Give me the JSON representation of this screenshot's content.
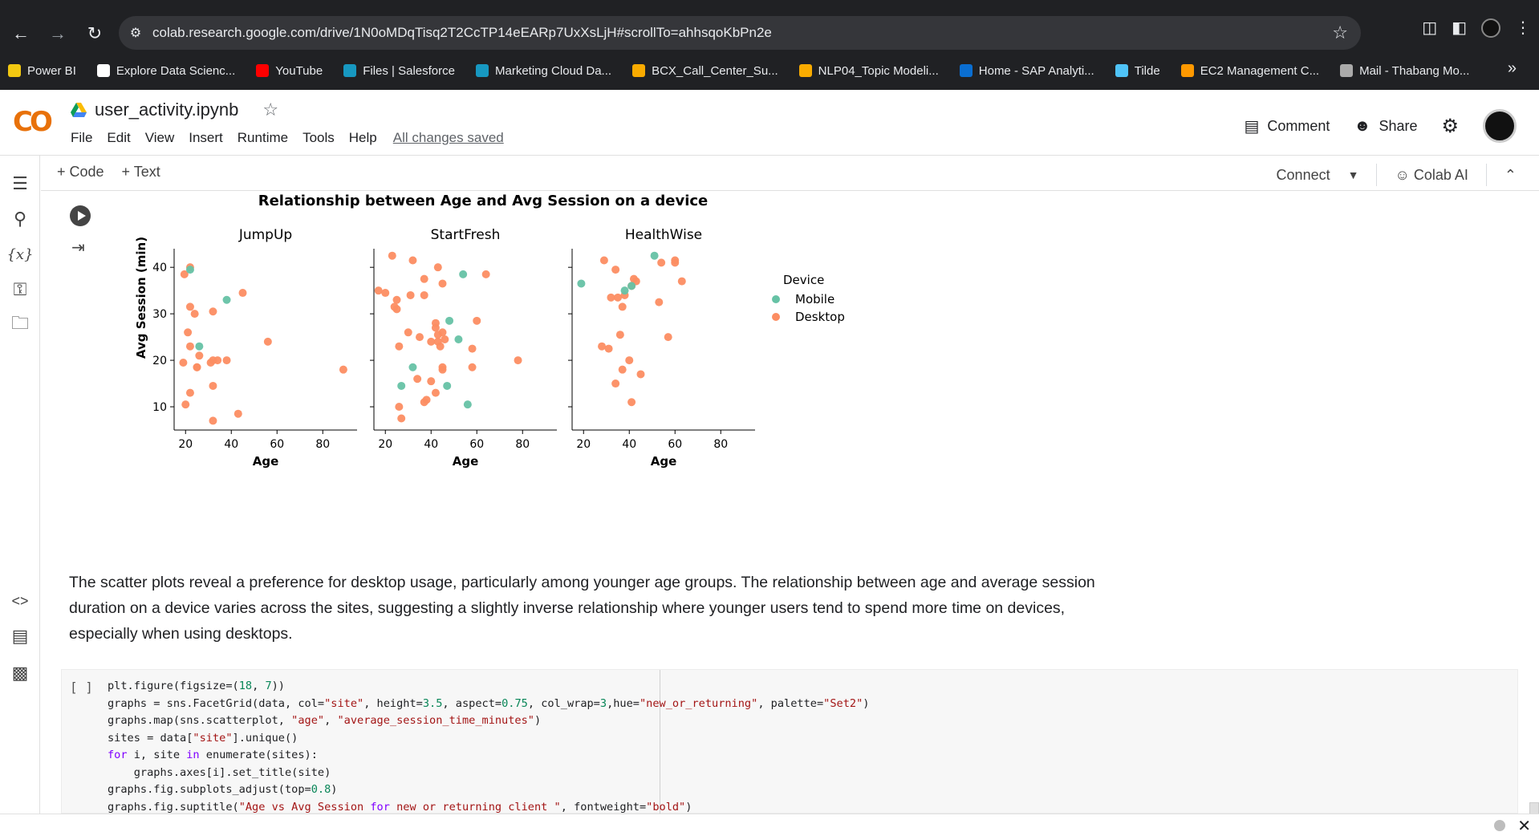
{
  "browser": {
    "url": "colab.research.google.com/drive/1N0oMDqTisq2T2CcTP14eEARp7UxXsLjH#scrollTo=ahhsqoKbPn2e",
    "bookmarks": [
      {
        "label": "Power BI",
        "color": "#f2c811"
      },
      {
        "label": "Explore Data Scienc...",
        "color": "#ffffff"
      },
      {
        "label": "YouTube",
        "color": "#ff0000"
      },
      {
        "label": "Files | Salesforce",
        "color": "#1798c1"
      },
      {
        "label": "Marketing Cloud Da...",
        "color": "#1798c1"
      },
      {
        "label": "BCX_Call_Center_Su...",
        "color": "#f9ab00"
      },
      {
        "label": "NLP04_Topic Modeli...",
        "color": "#f9ab00"
      },
      {
        "label": "Home - SAP Analyti...",
        "color": "#0a6ed1"
      },
      {
        "label": "Tilde",
        "color": "#4fc3f7"
      },
      {
        "label": "EC2 Management C...",
        "color": "#ff9900"
      },
      {
        "label": "Mail - Thabang Mo...",
        "color": "#aaaaaa"
      }
    ]
  },
  "colab": {
    "logo": "CO",
    "notebook_title": "user_activity.ipynb",
    "menu": [
      "File",
      "Edit",
      "View",
      "Insert",
      "Runtime",
      "Tools",
      "Help"
    ],
    "saved_status": "All changes saved",
    "comment_label": "Comment",
    "share_label": "Share",
    "add_code_label": "+ Code",
    "add_text_label": "+ Text",
    "connect_label": "Connect",
    "colab_ai_label": "Colab AI"
  },
  "chart_data": {
    "type": "scatter",
    "title": "Relationship between Age and Avg Session on a device",
    "ylabel": "Avg Session (min)",
    "xlabel": "Age",
    "xlim": [
      15,
      95
    ],
    "ylim": [
      5,
      44
    ],
    "xticks": [
      20,
      40,
      60,
      80
    ],
    "yticks": [
      10,
      20,
      30,
      40
    ],
    "legend_title": "Device",
    "legend_position": "right",
    "series_names": [
      "Mobile",
      "Desktop"
    ],
    "series_colors": {
      "Mobile": "#66c2a5",
      "Desktop": "#fc8d62"
    },
    "panels": [
      {
        "name": "JumpUp",
        "Mobile": [
          [
            22,
            39.5
          ],
          [
            38,
            33
          ],
          [
            26,
            23
          ]
        ],
        "Desktop": [
          [
            19.5,
            38.5
          ],
          [
            22,
            40
          ],
          [
            22,
            31.5
          ],
          [
            24,
            30
          ],
          [
            32,
            30.5
          ],
          [
            45,
            34.5
          ],
          [
            21,
            26
          ],
          [
            22,
            23
          ],
          [
            26,
            21
          ],
          [
            25,
            18.5
          ],
          [
            25,
            18.5
          ],
          [
            31,
            19.5
          ],
          [
            32,
            20
          ],
          [
            34,
            20
          ],
          [
            38,
            20
          ],
          [
            19,
            19.5
          ],
          [
            56,
            24
          ],
          [
            22,
            13
          ],
          [
            32,
            14.5
          ],
          [
            20,
            10.5
          ],
          [
            43,
            8.5
          ],
          [
            32,
            7
          ],
          [
            89,
            18
          ]
        ]
      },
      {
        "name": "StartFresh",
        "Mobile": [
          [
            54,
            38.5
          ],
          [
            48,
            28.5
          ],
          [
            52,
            24.5
          ],
          [
            32,
            18.5
          ],
          [
            27,
            14.5
          ],
          [
            47,
            14.5
          ],
          [
            56,
            10.5
          ]
        ],
        "Desktop": [
          [
            23,
            42.5
          ],
          [
            32,
            41.5
          ],
          [
            43,
            40
          ],
          [
            37,
            37.5
          ],
          [
            45,
            36.5
          ],
          [
            64,
            38.5
          ],
          [
            17,
            35
          ],
          [
            20,
            34.5
          ],
          [
            25,
            33
          ],
          [
            24,
            31.5
          ],
          [
            25,
            31
          ],
          [
            31,
            34
          ],
          [
            37,
            34
          ],
          [
            42,
            28
          ],
          [
            42,
            27
          ],
          [
            45,
            26
          ],
          [
            43,
            25.5
          ],
          [
            46,
            24.5
          ],
          [
            40,
            24
          ],
          [
            35,
            25
          ],
          [
            43,
            24
          ],
          [
            44,
            23
          ],
          [
            30,
            26
          ],
          [
            26,
            23
          ],
          [
            60,
            28.5
          ],
          [
            58,
            22.5
          ],
          [
            45,
            18.5
          ],
          [
            45,
            18
          ],
          [
            58,
            18.5
          ],
          [
            78,
            20
          ],
          [
            34,
            16
          ],
          [
            40,
            15.5
          ],
          [
            42,
            13
          ],
          [
            38,
            11.5
          ],
          [
            37,
            11
          ],
          [
            26,
            10
          ],
          [
            27,
            7.5
          ]
        ]
      },
      {
        "name": "HealthWise",
        "Mobile": [
          [
            19,
            36.5
          ],
          [
            51,
            42.5
          ],
          [
            38,
            35
          ],
          [
            41,
            36
          ]
        ],
        "Desktop": [
          [
            29,
            41.5
          ],
          [
            34,
            39.5
          ],
          [
            54,
            41
          ],
          [
            60,
            41
          ],
          [
            60,
            41.5
          ],
          [
            63,
            37
          ],
          [
            42,
            37.5
          ],
          [
            43,
            37
          ],
          [
            41,
            36
          ],
          [
            32,
            33.5
          ],
          [
            35,
            33.5
          ],
          [
            37,
            31.5
          ],
          [
            38,
            34
          ],
          [
            53,
            32.5
          ],
          [
            36,
            25.5
          ],
          [
            57,
            25
          ],
          [
            28,
            23
          ],
          [
            31,
            22.5
          ],
          [
            40,
            20
          ],
          [
            37,
            18
          ],
          [
            45,
            17
          ],
          [
            34,
            15
          ],
          [
            41,
            11
          ]
        ]
      }
    ]
  },
  "markdown": {
    "text": "The scatter plots reveal a preference for desktop usage, particularly among younger age groups. The relationship between age and average session duration on a device varies across the sites, suggesting a slightly inverse relationship where younger users tend to spend more time on devices, especially when using desktops."
  },
  "code_cell": {
    "bracket": "[ ]",
    "lines": [
      "plt.figure(figsize=(18, 7))",
      "graphs = sns.FacetGrid(data, col=\"site\", height=3.5, aspect=0.75, col_wrap=3,hue=\"new_or_returning\", palette=\"Set2\")",
      "graphs.map(sns.scatterplot, \"age\", \"average_session_time_minutes\")",
      "sites = data[\"site\"].unique()",
      "for i, site in enumerate(sites):",
      "    graphs.axes[i].set_title(site)",
      "graphs.fig.subplots_adjust(top=0.8)",
      "graphs.fig.suptitle(\"Age vs Avg Session for new or returning client \", fontweight=\"bold\")"
    ]
  }
}
